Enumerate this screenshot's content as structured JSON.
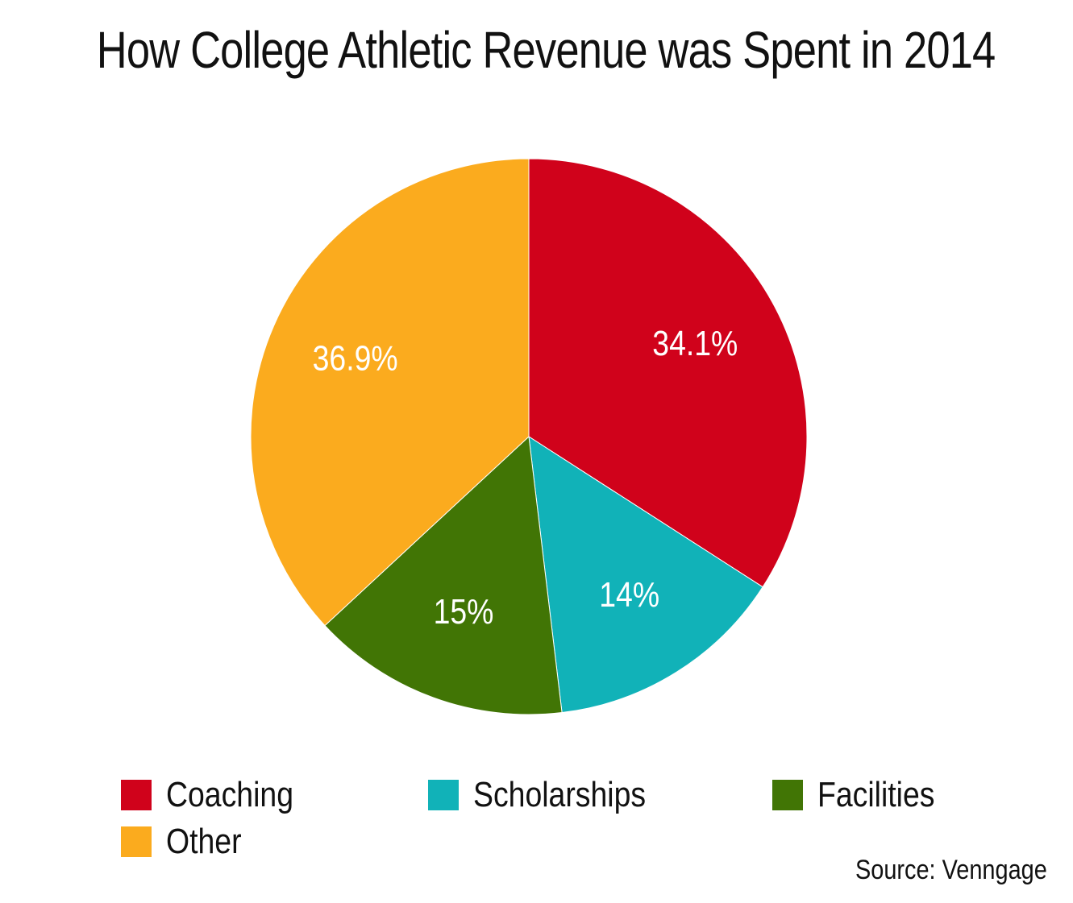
{
  "chart_data": {
    "type": "pie",
    "title": "How College Athletic Revenue was Spent in 2014",
    "source": "Source: Venngage",
    "slices": [
      {
        "name": "Coaching",
        "value": 34.1,
        "label": "34.1%",
        "color": "#d0021b"
      },
      {
        "name": "Scholarships",
        "value": 14,
        "label": "14%",
        "color": "#11b2b8"
      },
      {
        "name": "Facilities",
        "value": 15,
        "label": "15%",
        "color": "#417505"
      },
      {
        "name": "Other",
        "value": 36.9,
        "label": "36.9%",
        "color": "#fbab1e"
      }
    ],
    "legend_position": "bottom",
    "start_angle": "top, clockwise",
    "label_color": "#ffffff"
  }
}
